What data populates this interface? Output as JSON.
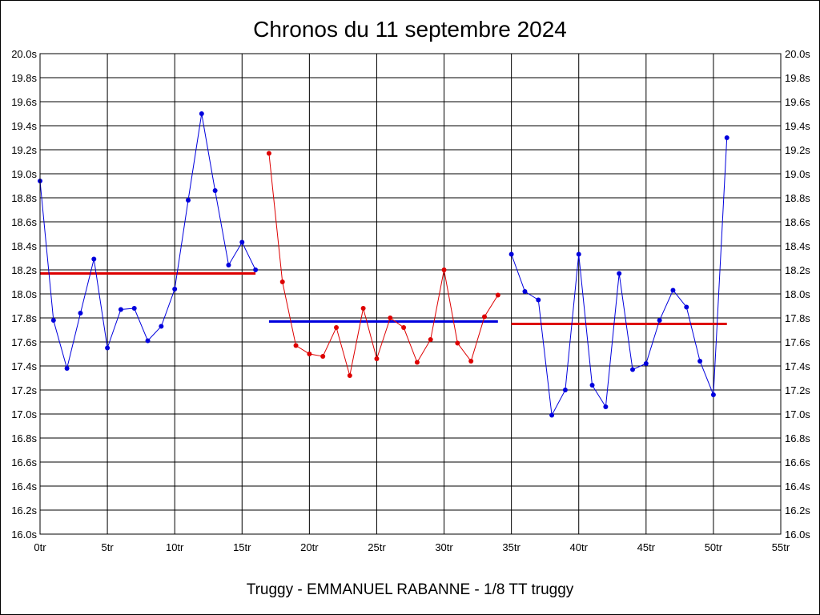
{
  "chart_data": {
    "type": "line",
    "title": "Chronos du 11 septembre 2024",
    "subtitle": "Truggy - EMMANUEL RABANNE - 1/8 TT truggy",
    "xlim": [
      0,
      55
    ],
    "ylim": [
      16.0,
      20.0
    ],
    "x_tick_step": 5,
    "y_tick_step": 0.2,
    "x_tick_suffix": "tr",
    "y_tick_suffix": "s",
    "grid": true,
    "y_ticks_both_sides": true,
    "series": [
      {
        "color": "#0000dd",
        "points": [
          [
            0,
            18.94
          ],
          [
            1,
            17.78
          ],
          [
            2,
            17.38
          ],
          [
            3,
            17.84
          ],
          [
            4,
            18.29
          ],
          [
            5,
            17.55
          ],
          [
            6,
            17.87
          ],
          [
            7,
            17.88
          ],
          [
            8,
            17.61
          ],
          [
            9,
            17.73
          ],
          [
            10,
            18.04
          ],
          [
            11,
            18.78
          ],
          [
            12,
            19.5
          ],
          [
            13,
            18.86
          ],
          [
            14,
            18.24
          ],
          [
            15,
            18.43
          ],
          [
            16,
            18.2
          ]
        ],
        "average": 18.17,
        "average_color": "#dd0000"
      },
      {
        "color": "#dd0000",
        "points": [
          [
            17,
            19.17
          ],
          [
            18,
            18.1
          ],
          [
            19,
            17.57
          ],
          [
            20,
            17.5
          ],
          [
            21,
            17.48
          ],
          [
            22,
            17.72
          ],
          [
            23,
            17.32
          ],
          [
            24,
            17.88
          ],
          [
            25,
            17.46
          ],
          [
            26,
            17.8
          ],
          [
            27,
            17.72
          ],
          [
            28,
            17.43
          ],
          [
            29,
            17.62
          ],
          [
            30,
            18.2
          ],
          [
            31,
            17.59
          ],
          [
            32,
            17.44
          ],
          [
            33,
            17.81
          ],
          [
            34,
            17.99
          ]
        ],
        "average": 17.77,
        "average_color": "#0000dd"
      },
      {
        "color": "#0000dd",
        "points": [
          [
            35,
            18.33
          ],
          [
            36,
            18.02
          ],
          [
            37,
            17.95
          ],
          [
            38,
            16.99
          ],
          [
            39,
            17.2
          ],
          [
            40,
            18.33
          ],
          [
            41,
            17.24
          ],
          [
            42,
            17.06
          ],
          [
            43,
            18.17
          ],
          [
            44,
            17.37
          ],
          [
            45,
            17.42
          ],
          [
            46,
            17.78
          ],
          [
            47,
            18.03
          ],
          [
            48,
            17.89
          ],
          [
            49,
            17.44
          ],
          [
            50,
            17.16
          ],
          [
            51,
            19.3
          ]
        ],
        "average": 17.75,
        "average_color": "#dd0000"
      }
    ]
  }
}
